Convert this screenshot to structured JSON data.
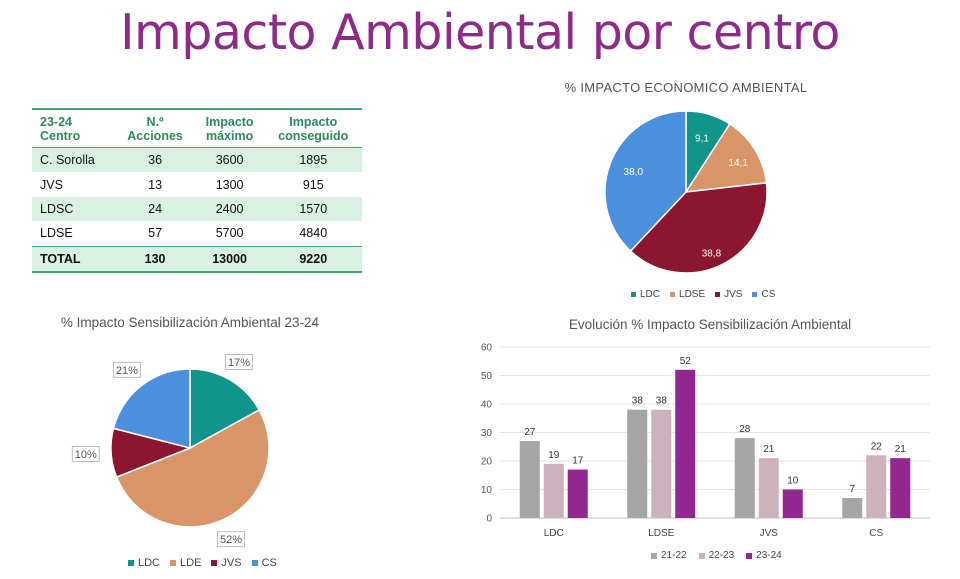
{
  "page": {
    "title": "Impacto Ambiental por centro"
  },
  "table": {
    "headers": [
      [
        "23-24",
        "Centro"
      ],
      [
        "N.º",
        "Acciones"
      ],
      [
        "Impacto",
        "máximo"
      ],
      [
        "Impacto",
        "conseguido"
      ]
    ],
    "rows": [
      [
        "C. Sorolla",
        "36",
        "3600",
        "1895"
      ],
      [
        "JVS",
        "13",
        "1300",
        "915"
      ],
      [
        "LDSC",
        "24",
        "2400",
        "1570"
      ],
      [
        "LDSE",
        "57",
        "5700",
        "4840"
      ]
    ],
    "total": [
      "TOTAL",
      "130",
      "13000",
      "9220"
    ]
  },
  "colors": {
    "teal": "#11948a",
    "orange": "#d9956a",
    "maroon": "#8c1530",
    "blue": "#4a90dc",
    "gray": "#a5a5a5",
    "pink": "#cdb1bd",
    "purple": "#92278f",
    "green": "#2e8a5d"
  },
  "chart_data": [
    {
      "type": "pie",
      "title": "% IMPACTO ECONOMICO AMBIENTAL",
      "labels": [
        "LDC",
        "LDSE",
        "JVS",
        "CS"
      ],
      "values": [
        9.1,
        14.1,
        38.8,
        38.0
      ],
      "data_labels": [
        "9,1",
        "14,1",
        "38,8",
        "38,0"
      ],
      "colors": [
        "#11948a",
        "#d9956a",
        "#8c1530",
        "#4a90dc"
      ],
      "legend": "bottom"
    },
    {
      "type": "pie",
      "title": "% Impacto Sensibilización Ambiental 23-24",
      "labels": [
        "LDC",
        "LDE",
        "JVS",
        "CS"
      ],
      "values": [
        17,
        52,
        10,
        21
      ],
      "data_labels": [
        "17%",
        "52%",
        "10%",
        "21%"
      ],
      "colors": [
        "#11948a",
        "#d9956a",
        "#8c1530",
        "#4a90dc"
      ],
      "legend": "bottom"
    },
    {
      "type": "bar",
      "title": "Evolución % Impacto Sensibilización Ambiental",
      "categories": [
        "LDC",
        "LDSE",
        "JVS",
        "CS"
      ],
      "series": [
        {
          "name": "21-22",
          "values": [
            27,
            38,
            28,
            7
          ],
          "color": "#a5a5a5"
        },
        {
          "name": "22-23",
          "values": [
            19,
            38,
            21,
            22
          ],
          "color": "#cdb1bd"
        },
        {
          "name": "23-24",
          "values": [
            17,
            52,
            10,
            21
          ],
          "color": "#92278f"
        }
      ],
      "yticks": [
        0,
        10,
        20,
        30,
        40,
        50,
        60
      ],
      "ylim": [
        0,
        60
      ],
      "grid": true,
      "legend": "bottom"
    }
  ]
}
